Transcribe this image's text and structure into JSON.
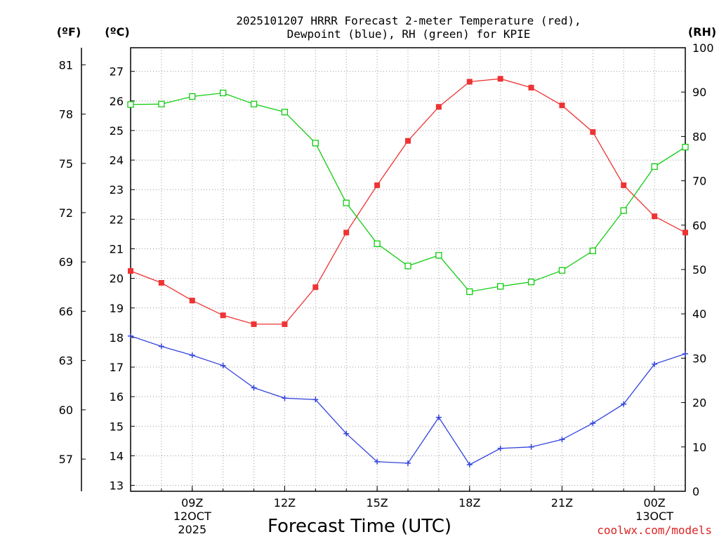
{
  "chart_data": {
    "type": "line",
    "title_line1": "2025101207 HRRR Forecast 2-meter Temperature (red),",
    "title_line2": "Dewpoint (blue), RH (green) for KPIE",
    "xlabel": "Forecast Time (UTC)",
    "credit": "coolwx.com/models",
    "units": {
      "fahrenheit": "(ºF)",
      "celsius": "(ºC)",
      "rh": "(RH)"
    },
    "x": [
      7,
      8,
      9,
      10,
      11,
      12,
      13,
      14,
      15,
      16,
      17,
      18,
      19,
      20,
      21,
      22,
      23,
      24,
      25
    ],
    "xlim": [
      7,
      25
    ],
    "x_ticks": [
      {
        "x": 9,
        "label": "09Z",
        "sub1": "12OCT",
        "sub2": "2025"
      },
      {
        "x": 12,
        "label": "12Z",
        "sub1": "",
        "sub2": ""
      },
      {
        "x": 15,
        "label": "15Z",
        "sub1": "",
        "sub2": ""
      },
      {
        "x": 18,
        "label": "18Z",
        "sub1": "",
        "sub2": ""
      },
      {
        "x": 21,
        "label": "21Z",
        "sub1": "",
        "sub2": ""
      },
      {
        "x": 24,
        "label": "00Z",
        "sub1": "13OCT",
        "sub2": ""
      }
    ],
    "celsius_axis": {
      "ylim": [
        12.8,
        27.8
      ],
      "ticks": [
        13,
        14,
        15,
        16,
        17,
        18,
        19,
        20,
        21,
        22,
        23,
        24,
        25,
        26,
        27
      ]
    },
    "fahrenheit_ticks": [
      57,
      60,
      63,
      66,
      69,
      72,
      75,
      78,
      81
    ],
    "rh_axis": {
      "ylim": [
        0,
        100
      ],
      "ticks": [
        0,
        10,
        20,
        30,
        40,
        50,
        60,
        70,
        80,
        90,
        100
      ]
    },
    "series": [
      {
        "name": "Temperature",
        "axis": "celsius",
        "color": "#ee3333",
        "marker": "filled-square",
        "values": [
          20.25,
          19.85,
          19.25,
          18.75,
          18.45,
          18.45,
          19.7,
          21.55,
          23.15,
          24.65,
          25.8,
          26.65,
          26.75,
          26.45,
          25.85,
          24.95,
          23.15,
          22.1,
          21.55
        ]
      },
      {
        "name": "Dewpoint",
        "axis": "celsius",
        "color": "#3344dd",
        "marker": "plus",
        "values": [
          18.05,
          17.7,
          17.4,
          17.05,
          16.3,
          15.95,
          15.9,
          14.75,
          13.8,
          13.75,
          15.3,
          13.7,
          14.25,
          14.3,
          14.55,
          15.1,
          15.75,
          17.1,
          17.45
        ]
      },
      {
        "name": "RH",
        "axis": "rh",
        "color": "#11cc11",
        "marker": "open-square",
        "values": [
          87.2,
          87.3,
          89.0,
          89.8,
          87.3,
          85.5,
          78.5,
          65.0,
          55.8,
          50.8,
          53.2,
          45.0,
          46.2,
          47.2,
          49.8,
          54.2,
          63.3,
          73.2,
          77.6
        ]
      }
    ]
  }
}
